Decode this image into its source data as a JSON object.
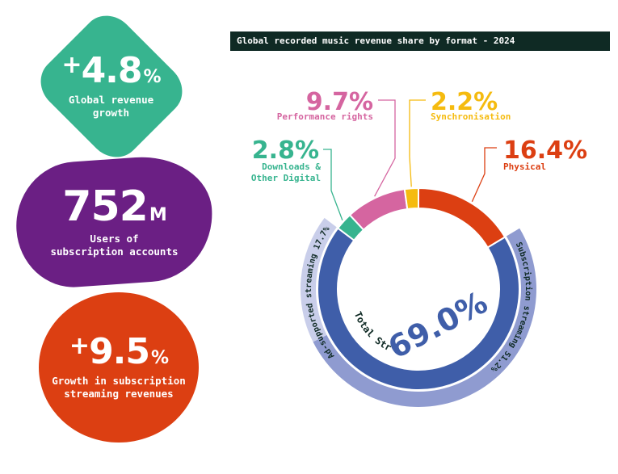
{
  "stats": [
    {
      "sign": "+",
      "value": "4.8",
      "unit": "%",
      "label_lines": [
        "Global revenue",
        "growth"
      ],
      "color": "#37b48f"
    },
    {
      "sign": "",
      "value": "752",
      "unit": "M",
      "label_lines": [
        "Users of",
        "subscription accounts"
      ],
      "color": "#6b1f84"
    },
    {
      "sign": "+",
      "value": "9.5",
      "unit": "%",
      "label_lines": [
        "Growth in subscription",
        "streaming revenues"
      ],
      "color": "#dc3f12"
    }
  ],
  "chart_data": {
    "type": "pie",
    "title": "Global recorded music revenue share by format - 2024",
    "slices": [
      {
        "label": "Physical",
        "value": 16.4,
        "display": "16.4%",
        "color": "#dc3f12"
      },
      {
        "label": "Total Streaming",
        "value": 69.0,
        "display": "69.0%",
        "color": "#3f5ea9"
      },
      {
        "label": "Downloads & Other Digital",
        "label_lines": [
          "Downloads &",
          "Other Digital"
        ],
        "value": 2.8,
        "display": "2.8%",
        "color": "#37b48f"
      },
      {
        "label": "Performance rights",
        "value": 9.7,
        "display": "9.7%",
        "color": "#d565a0"
      },
      {
        "label": "Synchronisation",
        "value": 2.2,
        "display": "2.2%",
        "color": "#f5bb0f"
      }
    ],
    "streaming_breakdown": [
      {
        "label": "Subscription streaming 51.2%",
        "value": 51.2,
        "color": "#8f9bd0"
      },
      {
        "label": "Ad-supported streaming 17.7%",
        "value": 17.7,
        "color": "#c9ceea"
      }
    ]
  }
}
